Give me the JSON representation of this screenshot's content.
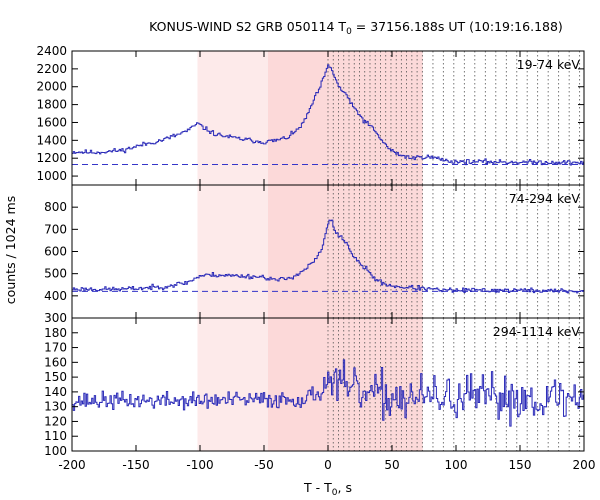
{
  "chart_data": {
    "type": "line",
    "title": "KONUS-WIND S2 GRB 050114 T",
    "title_sub": "0",
    "title_rest": " = 37156.188s UT (10:19:16.188)",
    "xlabel": "T - T",
    "xlabel_sub": "0",
    "xlabel_rest": ", s",
    "ylabel": "counts / 1024 ms",
    "xlim": [
      -200,
      200
    ],
    "xticks": [
      -200,
      -150,
      -100,
      -50,
      0,
      50,
      100,
      150,
      200
    ],
    "highlight_light": [
      -102,
      -47
    ],
    "highlight_dark": [
      -47,
      74
    ],
    "dotted_lines_x": [
      0,
      4.1,
      8.2,
      12.3,
      16.4,
      20.5,
      24.6,
      28.7,
      32.8,
      36.9,
      41,
      45.1,
      49.2,
      53.3,
      57.3,
      61.4,
      65.5,
      69.6,
      73.7,
      82,
      90.1,
      98.3,
      106.5,
      114.7,
      122.9,
      131.1,
      139.3,
      147.5,
      155.6,
      163.8,
      172,
      180.2,
      188.4,
      196.6
    ],
    "panels": [
      {
        "label": "19-74 keV",
        "ylim": [
          900,
          2400
        ],
        "yticks": [
          1000,
          1200,
          1400,
          1600,
          1800,
          2000,
          2200,
          2400
        ],
        "background": 1130,
        "keypoints": [
          [
            -200,
            1270
          ],
          [
            -180,
            1265
          ],
          [
            -160,
            1290
          ],
          [
            -145,
            1350
          ],
          [
            -130,
            1400
          ],
          [
            -118,
            1460
          ],
          [
            -108,
            1520
          ],
          [
            -102,
            1590
          ],
          [
            -96,
            1530
          ],
          [
            -88,
            1470
          ],
          [
            -78,
            1440
          ],
          [
            -70,
            1420
          ],
          [
            -60,
            1400
          ],
          [
            -50,
            1380
          ],
          [
            -40,
            1400
          ],
          [
            -32,
            1430
          ],
          [
            -25,
            1500
          ],
          [
            -18,
            1620
          ],
          [
            -12,
            1820
          ],
          [
            -6,
            2000
          ],
          [
            -2,
            2150
          ],
          [
            0,
            2230
          ],
          [
            3,
            2200
          ],
          [
            6,
            2080
          ],
          [
            10,
            1960
          ],
          [
            14,
            1930
          ],
          [
            18,
            1800
          ],
          [
            22,
            1740
          ],
          [
            28,
            1620
          ],
          [
            34,
            1550
          ],
          [
            40,
            1440
          ],
          [
            46,
            1330
          ],
          [
            52,
            1260
          ],
          [
            58,
            1230
          ],
          [
            66,
            1200
          ],
          [
            75,
            1220
          ],
          [
            85,
            1200
          ],
          [
            95,
            1165
          ],
          [
            110,
            1160
          ],
          [
            130,
            1160
          ],
          [
            150,
            1155
          ],
          [
            170,
            1155
          ],
          [
            200,
            1150
          ]
        ],
        "noise": 22,
        "seed": 11
      },
      {
        "label": "74-294 keV",
        "ylim": [
          300,
          900
        ],
        "yticks": [
          300,
          400,
          500,
          600,
          700,
          800
        ],
        "background": 420,
        "keypoints": [
          [
            -200,
            430
          ],
          [
            -160,
            430
          ],
          [
            -130,
            440
          ],
          [
            -110,
            460
          ],
          [
            -100,
            490
          ],
          [
            -90,
            495
          ],
          [
            -70,
            490
          ],
          [
            -50,
            485
          ],
          [
            -40,
            470
          ],
          [
            -30,
            480
          ],
          [
            -20,
            510
          ],
          [
            -10,
            560
          ],
          [
            -4,
            620
          ],
          [
            0,
            730
          ],
          [
            3,
            740
          ],
          [
            6,
            680
          ],
          [
            12,
            660
          ],
          [
            16,
            620
          ],
          [
            22,
            560
          ],
          [
            30,
            520
          ],
          [
            38,
            470
          ],
          [
            46,
            450
          ],
          [
            56,
            440
          ],
          [
            70,
            435
          ],
          [
            90,
            425
          ],
          [
            120,
            425
          ],
          [
            150,
            425
          ],
          [
            200,
            420
          ]
        ],
        "noise": 9,
        "seed": 23
      },
      {
        "label": "294-1114 keV",
        "ylim": [
          100,
          190
        ],
        "yticks": [
          100,
          110,
          120,
          130,
          140,
          150,
          160,
          170,
          180
        ],
        "background": null,
        "keypoints": [
          [
            -200,
            134
          ],
          [
            -100,
            134
          ],
          [
            -20,
            135
          ],
          [
            -5,
            140
          ],
          [
            0,
            150
          ],
          [
            10,
            143
          ],
          [
            30,
            138
          ],
          [
            60,
            136
          ],
          [
            100,
            136
          ],
          [
            150,
            136
          ],
          [
            200,
            135
          ]
        ],
        "noise": 5,
        "noise_after_zero": 13,
        "seed": 37
      }
    ]
  }
}
